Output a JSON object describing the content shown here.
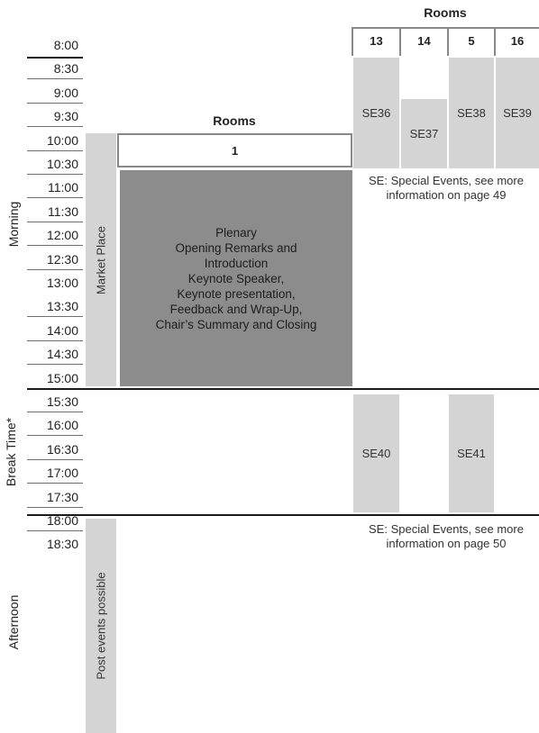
{
  "rooms_header_top": "Rooms",
  "rooms_header_mid": "Rooms",
  "top_rooms": [
    "13",
    "14",
    "5",
    "16"
  ],
  "room_1": "1",
  "times": [
    "8:00",
    "8:30",
    "9:00",
    "9:30",
    "10:00",
    "10:30",
    "11:00",
    "11:30",
    "12:00",
    "12:30",
    "13:00",
    "13:30",
    "14:00",
    "14:30",
    "15:00",
    "15:30",
    "16:00",
    "16:30",
    "17:00",
    "17:30",
    "18:00",
    "18:30"
  ],
  "periods": {
    "morning": "Morning",
    "break": "Break Time*",
    "afternoon": "Afternoon"
  },
  "market_place": "Market Place",
  "post_events": "Post events possible",
  "plenary": {
    "lines": [
      "Plenary",
      "Opening Remarks and",
      "Introduction",
      "Keynote Speaker,",
      "Keynote presentation,",
      "Feedback and Wrap-Up,",
      "Chair’s Summary and Closing"
    ]
  },
  "special_events_morning": [
    "SE36",
    "SE37",
    "SE38",
    "SE39"
  ],
  "special_events_break": [
    "SE40",
    "SE41"
  ],
  "note_morning": {
    "line1": "SE: Special Events, see more",
    "line2": "information on page 49"
  },
  "note_afternoon": {
    "line1": "SE: Special Events, see more",
    "line2": "information on page 50"
  },
  "colors": {
    "light_block": "#d4d4d4",
    "dark_block": "#8c8c8c",
    "rule": "#1a1a1a"
  }
}
